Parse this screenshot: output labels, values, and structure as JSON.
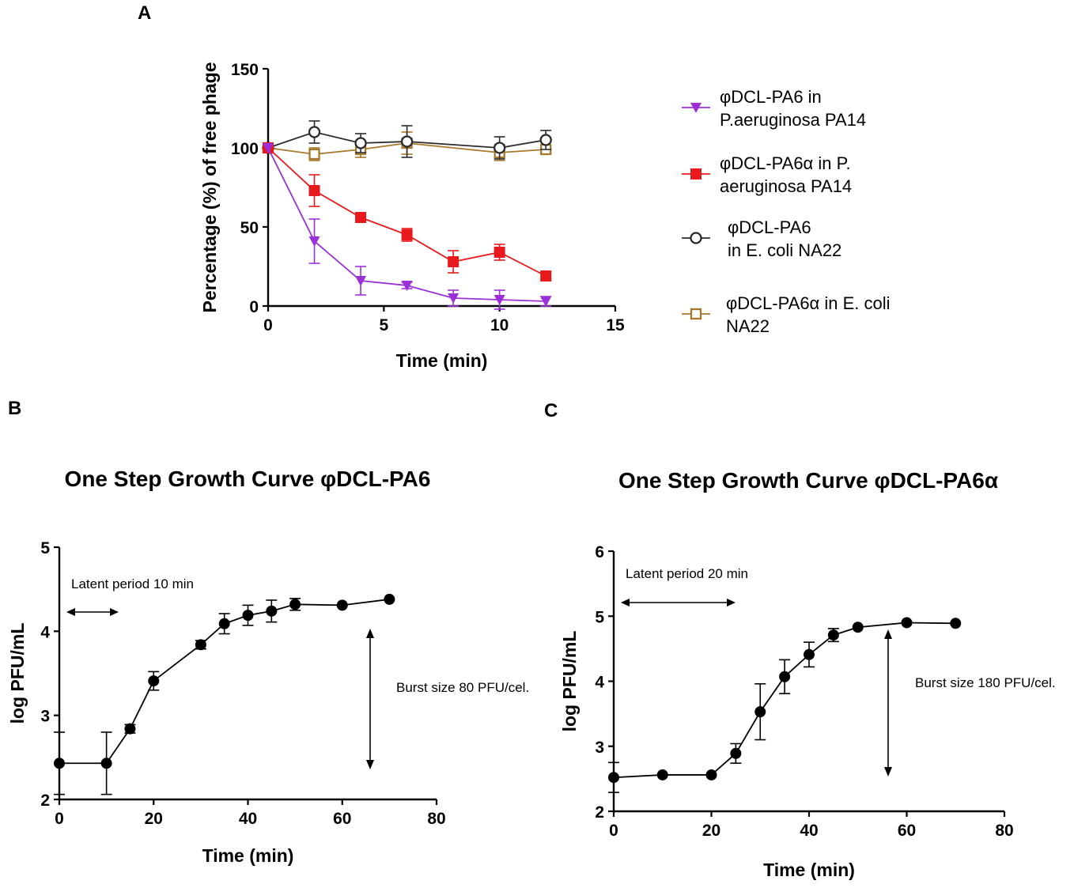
{
  "chart_data": [
    {
      "panel": "A",
      "type": "line",
      "title": "",
      "xlabel": "Time (min)",
      "ylabel": "Percentage (%) of free phage",
      "xlim": [
        0,
        15
      ],
      "ylim": [
        0,
        150
      ],
      "xticks": [
        0,
        5,
        10,
        15
      ],
      "yticks": [
        0,
        50,
        100,
        150
      ],
      "grid": false,
      "legend_position": "right",
      "series": [
        {
          "name": "φDCL-PA6 in P.aeruginosa PA14",
          "legend_lines": [
            "φDCL-PA6 in",
            "P.aeruginosa PA14"
          ],
          "color": "#9b30d9",
          "marker": "triangle-down",
          "x": [
            0,
            2,
            4,
            6,
            8,
            10,
            12
          ],
          "y": [
            100,
            41,
            16,
            13,
            5,
            4,
            3
          ],
          "err": [
            0,
            14,
            9,
            2,
            5,
            6,
            3
          ]
        },
        {
          "name": "φDCL-PA6α in P. aeruginosa PA14",
          "legend_lines": [
            "φDCL-PA6α in P.",
            "aeruginosa PA14"
          ],
          "color": "#e8191d",
          "marker": "square",
          "x": [
            0,
            2,
            4,
            6,
            8,
            10,
            12
          ],
          "y": [
            100,
            73,
            56,
            45,
            28,
            34,
            19
          ],
          "err": [
            0,
            10,
            2,
            4,
            7,
            5,
            2
          ]
        },
        {
          "name": "φDCL-PA6 in E. coli NA22",
          "legend_lines": [
            "φDCL-PA6",
            "in E. coli NA22"
          ],
          "color": "#2b2b2b",
          "marker": "circle-open",
          "x": [
            0,
            2,
            4,
            6,
            10,
            12
          ],
          "y": [
            100,
            110,
            103,
            104,
            100,
            105
          ],
          "err": [
            0,
            7,
            6,
            10,
            7,
            6
          ]
        },
        {
          "name": "φDCL-PA6α in E. coli NA22",
          "legend_lines": [
            "φDCL-PA6α in E. coli",
            "NA22"
          ],
          "color": "#a8782a",
          "marker": "square-open",
          "x": [
            0,
            2,
            4,
            6,
            10,
            12
          ],
          "y": [
            100,
            96,
            99,
            103,
            97,
            99
          ],
          "err": [
            0,
            4,
            5,
            7,
            5,
            3
          ]
        }
      ]
    },
    {
      "panel": "B",
      "type": "line",
      "title": "One Step Growth Curve φDCL-PA6",
      "xlabel": "Time (min)",
      "ylabel": "log PFU/mL",
      "xlim": [
        0,
        80
      ],
      "ylim": [
        2,
        5
      ],
      "xticks": [
        0,
        20,
        40,
        60,
        80
      ],
      "yticks": [
        2,
        3,
        4,
        5
      ],
      "grid": false,
      "series": [
        {
          "name": "φDCL-PA6",
          "color": "#000000",
          "x": [
            0,
            10,
            15,
            20,
            30,
            35,
            40,
            45,
            50,
            60,
            70
          ],
          "y": [
            2.43,
            2.43,
            2.84,
            3.41,
            3.84,
            4.09,
            4.19,
            4.24,
            4.32,
            4.31,
            4.38
          ],
          "err": [
            0.37,
            0.37,
            0.05,
            0.11,
            0.05,
            0.12,
            0.12,
            0.13,
            0.07,
            0,
            0
          ]
        }
      ],
      "annotations": {
        "latent": "Latent period 10 min",
        "burst": "Burst size 80 PFU/cel."
      }
    },
    {
      "panel": "C",
      "type": "line",
      "title": "One Step Growth Curve φDCL-PA6α",
      "xlabel": "Time (min)",
      "ylabel": "log PFU/mL",
      "xlim": [
        0,
        80
      ],
      "ylim": [
        2,
        6
      ],
      "xticks": [
        0,
        20,
        40,
        60,
        80
      ],
      "yticks": [
        2,
        3,
        4,
        5,
        6
      ],
      "grid": false,
      "series": [
        {
          "name": "φDCL-PA6α",
          "color": "#000000",
          "x": [
            0,
            10,
            20,
            25,
            30,
            35,
            40,
            45,
            50,
            60,
            70
          ],
          "y": [
            2.52,
            2.56,
            2.56,
            2.89,
            3.53,
            4.07,
            4.41,
            4.71,
            4.83,
            4.9,
            4.89
          ],
          "err": [
            0.23,
            0,
            0,
            0.15,
            0.43,
            0.26,
            0.19,
            0.1,
            0,
            0,
            0
          ]
        }
      ],
      "annotations": {
        "latent": "Latent period 20 min",
        "burst": "Burst size 180 PFU/cel."
      }
    }
  ]
}
